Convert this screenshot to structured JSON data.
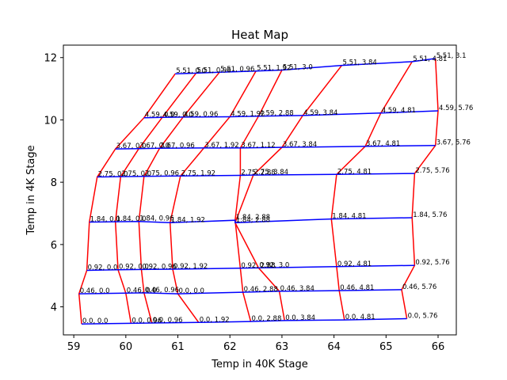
{
  "chart_data": {
    "type": "line",
    "title": "Heat Map",
    "xlabel": "Temp in 40K Stage",
    "ylabel": "Temp in 4K Stage",
    "xlim": [
      58.8,
      66.35
    ],
    "ylim": [
      3.1,
      12.4
    ],
    "xticks": [
      "59",
      "60",
      "61",
      "62",
      "63",
      "64",
      "65",
      "66"
    ],
    "yticks": [
      "4",
      "6",
      "8",
      "10",
      "12"
    ],
    "grid": false,
    "legend": "none",
    "colors": {
      "row_lines": "#0000ff",
      "column_lines": "#ff0000"
    },
    "grid_points": {
      "rows": [
        [
          {
            "label": "0.0, 0.0",
            "x": 59.15,
            "y": 3.45
          },
          {
            "label": "0.0, 0.96",
            "x": 60.1,
            "y": 3.47
          },
          {
            "label": "0.0, 0.96",
            "x": 60.5,
            "y": 3.48
          },
          {
            "label": "0.0, 1.92",
            "x": 61.4,
            "y": 3.5
          },
          {
            "label": "0.0, 2.88",
            "x": 62.4,
            "y": 3.53
          },
          {
            "label": "0.0, 3.84",
            "x": 63.05,
            "y": 3.56
          },
          {
            "label": "0.0, 4.81",
            "x": 64.2,
            "y": 3.58
          },
          {
            "label": "0.0, 5.76",
            "x": 65.4,
            "y": 3.62
          }
        ],
        [
          {
            "label": "0.46, 0.0",
            "x": 59.1,
            "y": 4.42
          },
          {
            "label": "0.46, 0.0",
            "x": 60.0,
            "y": 4.44
          },
          {
            "label": "0.46, 0.96",
            "x": 60.35,
            "y": 4.45
          },
          {
            "label": "0.0, 0.0",
            "x": 61.0,
            "y": 4.42
          },
          {
            "label": "0.46, 2.88",
            "x": 62.25,
            "y": 4.47
          },
          {
            "label": "0.46, 3.84",
            "x": 62.95,
            "y": 4.5
          },
          {
            "label": "0.46, 4.81",
            "x": 64.1,
            "y": 4.52
          },
          {
            "label": "0.46, 5.76",
            "x": 65.3,
            "y": 4.55
          }
        ],
        [
          {
            "label": "0.92, 0.0",
            "x": 59.25,
            "y": 5.17
          },
          {
            "label": "0.92, 0.0",
            "x": 59.85,
            "y": 5.19
          },
          {
            "label": "0.92, 0.96",
            "x": 60.3,
            "y": 5.2
          },
          {
            "label": "0.92, 1.92",
            "x": 60.9,
            "y": 5.21
          },
          {
            "label": "0.92, 2.88",
            "x": 62.2,
            "y": 5.24
          },
          {
            "label": "0.92, 3.0",
            "x": 62.55,
            "y": 5.25
          },
          {
            "label": "0.92, 4.81",
            "x": 64.05,
            "y": 5.29
          },
          {
            "label": "0.92, 5.76",
            "x": 65.55,
            "y": 5.33
          }
        ],
        [
          {
            "label": "1.84, 0.0",
            "x": 59.3,
            "y": 6.72
          },
          {
            "label": "1.84, 0.0",
            "x": 59.8,
            "y": 6.73
          },
          {
            "label": "1.84, 0.96",
            "x": 60.25,
            "y": 6.74
          },
          {
            "label": "1.84, 1.92",
            "x": 60.85,
            "y": 6.7
          },
          {
            "label": "1.84, 2.88",
            "x": 62.1,
            "y": 6.78
          },
          {
            "label": "1.84, 2.88",
            "x": 62.1,
            "y": 6.7
          },
          {
            "label": "1.84, 4.81",
            "x": 63.95,
            "y": 6.82
          },
          {
            "label": "1.84, 5.76",
            "x": 65.5,
            "y": 6.86
          }
        ],
        [
          {
            "label": "2.75, 0.0",
            "x": 59.45,
            "y": 8.17
          },
          {
            "label": "2.75, 0.0",
            "x": 59.9,
            "y": 8.18
          },
          {
            "label": "2.75, 0.96",
            "x": 60.35,
            "y": 8.19
          },
          {
            "label": "2.75, 1.92",
            "x": 61.05,
            "y": 8.2
          },
          {
            "label": "2.75, 2.88",
            "x": 62.2,
            "y": 8.22
          },
          {
            "label": "2.75, 3.84",
            "x": 62.45,
            "y": 8.23
          },
          {
            "label": "2.75, 4.81",
            "x": 64.05,
            "y": 8.25
          },
          {
            "label": "2.75, 5.76",
            "x": 65.55,
            "y": 8.28
          }
        ],
        [
          {
            "label": "3.67, 0.0",
            "x": 59.8,
            "y": 9.07
          },
          {
            "label": "3.67, 0.0",
            "x": 60.25,
            "y": 9.08
          },
          {
            "label": "3.67, 0.96",
            "x": 60.65,
            "y": 9.09
          },
          {
            "label": "3.67, 1.92",
            "x": 61.5,
            "y": 9.1
          },
          {
            "label": "3.67, 1.12",
            "x": 62.2,
            "y": 9.1
          },
          {
            "label": "3.67, 3.84",
            "x": 63.0,
            "y": 9.12
          },
          {
            "label": "3.67, 4.81",
            "x": 64.6,
            "y": 9.15
          },
          {
            "label": "3.67, 5.76",
            "x": 65.95,
            "y": 9.18
          }
        ],
        [
          {
            "label": "4.59, 0.0",
            "x": 60.35,
            "y": 10.07
          },
          {
            "label": "4.59, 0.0",
            "x": 60.7,
            "y": 10.08
          },
          {
            "label": "4.59, 0.96",
            "x": 61.1,
            "y": 10.09
          },
          {
            "label": "4.59, 1.92",
            "x": 62.0,
            "y": 10.1
          },
          {
            "label": "4.59, 2.88",
            "x": 62.55,
            "y": 10.12
          },
          {
            "label": "4.59, 3.84",
            "x": 63.4,
            "y": 10.14
          },
          {
            "label": "4.59, 4.81",
            "x": 64.9,
            "y": 10.22
          },
          {
            "label": "4.59, 5.76",
            "x": 66.0,
            "y": 10.29
          }
        ],
        [
          {
            "label": "5.51, 0.0",
            "x": 60.95,
            "y": 11.48
          },
          {
            "label": "5.51, 0.96",
            "x": 61.35,
            "y": 11.5
          },
          {
            "label": "5.51, 0.96",
            "x": 61.8,
            "y": 11.53
          },
          {
            "label": "5.51, 1.92",
            "x": 62.5,
            "y": 11.57
          },
          {
            "label": "5.51, 3.0",
            "x": 63.0,
            "y": 11.6
          },
          {
            "label": "5.51, 3.84",
            "x": 64.15,
            "y": 11.75
          },
          {
            "label": "5.51, 4.81",
            "x": 65.5,
            "y": 11.87
          },
          {
            "label": "5.51, 3.1",
            "x": 65.95,
            "y": 11.97
          }
        ]
      ]
    }
  }
}
